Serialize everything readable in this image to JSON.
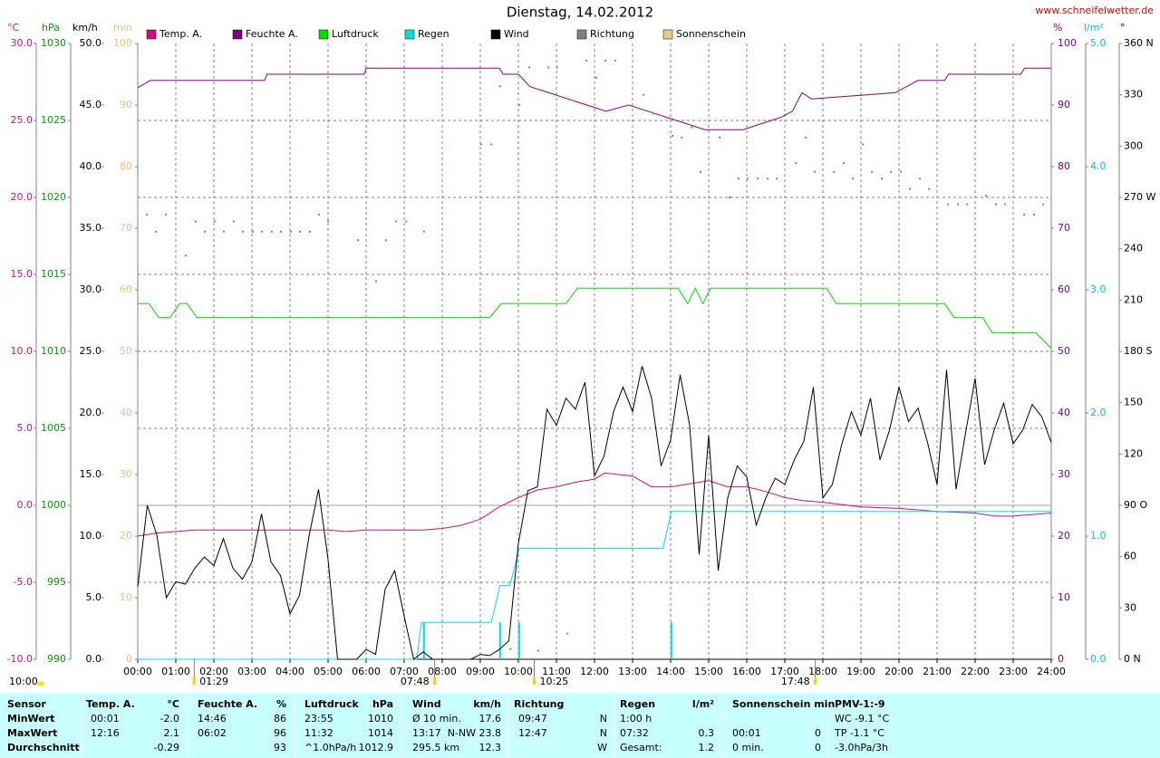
{
  "chart_data": {
    "type": "line",
    "title": "Dienstag, 14.02.2012",
    "source": "www.schneifelwetter.de",
    "grid": true,
    "xlim": [
      0,
      24
    ],
    "xticks": [
      {
        "value": 0,
        "label": "00:00"
      },
      {
        "value": 1,
        "label": "01:00"
      },
      {
        "value": 2,
        "label": "02:00"
      },
      {
        "value": 3,
        "label": "03:00"
      },
      {
        "value": 4,
        "label": "04:00"
      },
      {
        "value": 5,
        "label": "05:00"
      },
      {
        "value": 6,
        "label": "06:00"
      },
      {
        "value": 7,
        "label": "07:00"
      },
      {
        "value": 8,
        "label": "08:00"
      },
      {
        "value": 9,
        "label": "09:00"
      },
      {
        "value": 10,
        "label": "10:00"
      },
      {
        "value": 11,
        "label": "11:00"
      },
      {
        "value": 12,
        "label": "12:00"
      },
      {
        "value": 13,
        "label": "13:00"
      },
      {
        "value": 14,
        "label": "14:00"
      },
      {
        "value": 15,
        "label": "15:00"
      },
      {
        "value": 16,
        "label": "16:00"
      },
      {
        "value": 17,
        "label": "17:00"
      },
      {
        "value": 18,
        "label": "18:00"
      },
      {
        "value": 19,
        "label": "19:00"
      },
      {
        "value": 20,
        "label": "20:00"
      },
      {
        "value": 21,
        "label": "21:00"
      },
      {
        "value": 22,
        "label": "22:00"
      },
      {
        "value": 23,
        "label": "23:00"
      },
      {
        "value": 24,
        "label": "24:00"
      }
    ],
    "axes": {
      "temp": {
        "unit": "°C",
        "color": "#d0107a",
        "lim": [
          -10,
          30
        ],
        "ticks": [
          {
            "value": -10,
            "label": "-10.0"
          },
          {
            "value": -5,
            "label": "-5.0"
          },
          {
            "value": 0,
            "label": "0.0"
          },
          {
            "value": 5,
            "label": "5.0"
          },
          {
            "value": 10,
            "label": "10.0"
          },
          {
            "value": 15,
            "label": "15.0"
          },
          {
            "value": 20,
            "label": "20.0"
          },
          {
            "value": 25,
            "label": "25.0"
          },
          {
            "value": 30,
            "label": "30.0"
          }
        ]
      },
      "pressure": {
        "unit": "hPa",
        "color": "#00a000",
        "lim": [
          990,
          1030
        ],
        "ticks": [
          990,
          995,
          1000,
          1005,
          1010,
          1015,
          1020,
          1025,
          1030
        ]
      },
      "wind": {
        "unit": "km/h",
        "color": "#000000",
        "lim": [
          0,
          50
        ],
        "ticks": [
          {
            "value": 0,
            "label": "0.0"
          },
          {
            "value": 5,
            "label": "5.0"
          },
          {
            "value": 10,
            "label": "10.0"
          },
          {
            "value": 15,
            "label": "15.0"
          },
          {
            "value": 20,
            "label": "20.0"
          },
          {
            "value": 25,
            "label": "25.0"
          },
          {
            "value": 30,
            "label": "30.0"
          },
          {
            "value": 35,
            "label": "35.0"
          },
          {
            "value": 40,
            "label": "40.0"
          },
          {
            "value": 45,
            "label": "45.0"
          },
          {
            "value": 50,
            "label": "50.0"
          }
        ]
      },
      "sun": {
        "unit": "min",
        "color": "#f0c080",
        "lim": [
          0,
          100
        ],
        "ticks": [
          0,
          10,
          20,
          30,
          40,
          50,
          60,
          70,
          80,
          90,
          100
        ]
      },
      "humidity": {
        "unit": "%",
        "color": "#800080",
        "lim": [
          0,
          100
        ],
        "ticks": [
          0,
          10,
          20,
          30,
          40,
          50,
          60,
          70,
          80,
          90,
          100
        ]
      },
      "rain": {
        "unit": "l/m²",
        "color": "#00c8c8",
        "lim": [
          0,
          5
        ],
        "ticks": [
          {
            "value": 0,
            "label": "0.0"
          },
          {
            "value": 1,
            "label": "1.0"
          },
          {
            "value": 2,
            "label": "2.0"
          },
          {
            "value": 3,
            "label": "3.0"
          },
          {
            "value": 4,
            "label": "4.0"
          },
          {
            "value": 5,
            "label": "5.0"
          }
        ]
      },
      "direction": {
        "unit": "°",
        "color": "#000000",
        "lim": [
          0,
          360
        ],
        "ticks": [
          {
            "value": 0,
            "label": "0 N"
          },
          30,
          60,
          {
            "value": 90,
            "label": "90 O"
          },
          120,
          150,
          {
            "value": 180,
            "label": "180 S"
          },
          210,
          240,
          {
            "value": 270,
            "label": "270 W"
          },
          300,
          330,
          {
            "value": 360,
            "label": "360 N"
          }
        ]
      }
    },
    "series": [
      {
        "name": "Temp. A.",
        "color": "#d0107a",
        "axis": "temp",
        "style": "line",
        "x": [
          0,
          0.5,
          1,
          1.5,
          2,
          3,
          4,
          5,
          5.5,
          6,
          7,
          7.5,
          8,
          8.5,
          9,
          9.5,
          10,
          10.5,
          11,
          11.5,
          12,
          12.27,
          13,
          13.5,
          14,
          14.5,
          15,
          15.5,
          16,
          16.5,
          17,
          17.5,
          18,
          19,
          20,
          21,
          22,
          22.5,
          23,
          24
        ],
        "values": [
          -2.0,
          -1.8,
          -1.7,
          -1.6,
          -1.6,
          -1.6,
          -1.6,
          -1.6,
          -1.7,
          -1.6,
          -1.6,
          -1.6,
          -1.5,
          -1.3,
          -0.9,
          -0.1,
          0.5,
          1.0,
          1.2,
          1.5,
          1.7,
          2.1,
          1.9,
          1.2,
          1.2,
          1.4,
          1.6,
          1.2,
          1.2,
          0.9,
          0.5,
          0.3,
          0.2,
          -0.1,
          -0.2,
          -0.4,
          -0.5,
          -0.7,
          -0.7,
          -0.5
        ]
      },
      {
        "name": "Feuchte A.",
        "color": "#800080",
        "axis": "humidity",
        "style": "line",
        "x": [
          0,
          0.33,
          3.33,
          3.4,
          5.95,
          6.0,
          9.5,
          9.6,
          10.0,
          10.3,
          10.8,
          11.3,
          11.8,
          12.3,
          12.9,
          13.4,
          13.9,
          14.4,
          14.9,
          15.9,
          16.4,
          16.9,
          17.2,
          17.45,
          17.7,
          19.9,
          20.5,
          21.2,
          21.3,
          23.2,
          23.3,
          24
        ],
        "values": [
          92.8,
          94,
          94,
          95,
          95,
          96,
          96,
          95,
          95,
          93,
          92,
          91,
          90,
          89,
          90,
          89,
          88,
          87,
          86,
          86,
          87,
          88,
          89,
          92,
          91,
          92,
          94,
          94,
          95,
          95,
          96,
          96
        ]
      },
      {
        "name": "Luftdruck",
        "color": "#00dd00",
        "axis": "pressure",
        "style": "line",
        "x": [
          0,
          0.3,
          0.55,
          0.85,
          1.1,
          1.3,
          1.55,
          9.25,
          9.55,
          11.25,
          11.55,
          14.2,
          14.45,
          14.65,
          14.85,
          15.05,
          18.1,
          18.35,
          21.2,
          21.45,
          22.2,
          22.45,
          23.6,
          24
        ],
        "values": [
          1013.1,
          1013.1,
          1012.2,
          1012.2,
          1013.1,
          1013.1,
          1012.2,
          1012.2,
          1013.1,
          1013.1,
          1014.1,
          1014.1,
          1013.1,
          1014.1,
          1013.1,
          1014.1,
          1014.1,
          1013.1,
          1013.1,
          1012.2,
          1012.2,
          1011.2,
          1011.2,
          1010.2
        ]
      },
      {
        "name": "Regen",
        "color": "#00e0e0",
        "axis": "rain",
        "style": "line",
        "x": [
          0,
          7.33,
          7.45,
          9.29,
          9.52,
          9.78,
          10.02,
          13.8,
          14.02,
          24
        ],
        "values": [
          0,
          0,
          0.3,
          0.3,
          0.6,
          0.6,
          0.9,
          0.9,
          1.2,
          1.2
        ],
        "bars_x": [
          7.52,
          9.52,
          10.02,
          14.02
        ],
        "bars": [
          0.3,
          0.3,
          0.3,
          0.3
        ]
      },
      {
        "name": "Wind",
        "color": "#000000",
        "axis": "wind",
        "style": "line",
        "x": [
          0,
          0.25,
          0.5,
          0.75,
          1,
          1.25,
          1.5,
          1.75,
          2,
          2.25,
          2.5,
          2.75,
          3,
          3.25,
          3.5,
          3.75,
          4,
          4.25,
          4.5,
          4.75,
          5,
          5.25,
          5.5,
          5.75,
          6,
          6.25,
          6.5,
          6.75,
          7,
          7.25,
          7.5,
          7.75,
          8,
          8.25,
          8.5,
          8.75,
          9,
          9.25,
          9.5,
          9.75,
          10,
          10.25,
          10.5,
          10.75,
          11,
          11.25,
          11.5,
          11.75,
          12,
          12.25,
          12.5,
          12.75,
          13,
          13.25,
          13.5,
          13.75,
          14,
          14.25,
          14.5,
          14.75,
          15,
          15.25,
          15.5,
          15.75,
          16,
          16.25,
          16.5,
          16.75,
          17,
          17.25,
          17.5,
          17.75,
          18,
          18.25,
          18.5,
          18.75,
          19,
          19.25,
          19.5,
          19.75,
          20,
          20.25,
          20.5,
          20.75,
          21,
          21.25,
          21.5,
          21.75,
          22,
          22.25,
          22.5,
          22.75,
          23,
          23.25,
          23.5,
          23.75,
          24
        ],
        "values": [
          5.9,
          12.5,
          10.1,
          5.0,
          6.3,
          6.1,
          7.4,
          8.3,
          7.6,
          9.8,
          7.4,
          6.5,
          7.9,
          11.8,
          7.9,
          6.8,
          3.7,
          5.2,
          10.0,
          13.8,
          8.1,
          0,
          0,
          0,
          0.8,
          0.4,
          5.7,
          7.2,
          3.5,
          0,
          0.6,
          0,
          0,
          0,
          0,
          0,
          0.4,
          0.3,
          0.8,
          1.5,
          9.4,
          13.7,
          14.0,
          20.3,
          19.0,
          21.2,
          20.3,
          22.5,
          14.9,
          16.5,
          20.1,
          22.1,
          20.1,
          23.8,
          21.2,
          15.7,
          17.8,
          23.1,
          19.0,
          8.5,
          18.2,
          7.2,
          13.1,
          15.7,
          14.8,
          10.9,
          13.1,
          14.7,
          14.2,
          16.2,
          17.7,
          22.1,
          13.1,
          14.2,
          17.5,
          20.1,
          18.2,
          21.2,
          16.2,
          18.6,
          22.1,
          19.3,
          20.4,
          17.6,
          14.2,
          23.5,
          13.8,
          18.4,
          22.8,
          15.8,
          18.6,
          20.8,
          17.5,
          18.6,
          20.7,
          19.7,
          17.6
        ]
      },
      {
        "name": "Richtung",
        "color": "#808080",
        "axis": "direction",
        "style": "dots",
        "x": [
          0.24,
          0.48,
          0.74,
          1.26,
          1.52,
          1.76,
          2.02,
          2.26,
          2.52,
          2.76,
          3.02,
          3.26,
          3.52,
          3.76,
          4.02,
          4.26,
          4.52,
          4.76,
          5.0,
          5.79,
          6.26,
          6.52,
          6.79,
          7.05,
          7.52,
          9.02,
          9.29,
          9.52,
          9.79,
          10.02,
          10.29,
          10.52,
          10.79,
          11.02,
          11.29,
          11.79,
          12.05,
          12.29,
          12.55,
          13.29,
          13.55,
          14.05,
          14.29,
          14.55,
          14.79,
          15.29,
          15.55,
          15.79,
          16.02,
          16.29,
          16.55,
          16.79,
          17.29,
          17.55,
          17.79,
          18.29,
          18.55,
          18.79,
          19.05,
          19.29,
          19.55,
          19.79,
          20.05,
          20.29,
          20.55,
          20.79,
          21.29,
          21.55,
          21.79,
          22.29,
          22.55,
          22.79,
          23.29,
          23.55,
          23.79
        ],
        "values": [
          260,
          250,
          260,
          236,
          256,
          250,
          256,
          250,
          256,
          250,
          250,
          250,
          250,
          250,
          250,
          250,
          250,
          260,
          256,
          245,
          221,
          245,
          256,
          256,
          250,
          301,
          301,
          335,
          6,
          324,
          346,
          5,
          346,
          346,
          15,
          350,
          340,
          350,
          350,
          330,
          319,
          306,
          305,
          311,
          285,
          305,
          270,
          281,
          281,
          281,
          281,
          281,
          290,
          305,
          285,
          285,
          290,
          281,
          301,
          285,
          281,
          285,
          285,
          275,
          281,
          275,
          266,
          266,
          266,
          271,
          266,
          266,
          260,
          260,
          266
        ]
      },
      {
        "name": "Sonnenschein",
        "color": "#f0c890",
        "axis": "sun",
        "style": "line",
        "x": [],
        "values": []
      }
    ],
    "annotations": [
      {
        "label": "10:00"
      },
      {
        "label": "01:29",
        "x": 1.4833
      },
      {
        "label": "07:48",
        "x": 7.8
      },
      {
        "label": "10:25",
        "x": 10.4167
      },
      {
        "label": "17:48",
        "x": 17.8
      }
    ]
  },
  "table": {
    "rows": [
      [
        "Sensor",
        "Temp. A.",
        "°C",
        "Feuchte A.",
        "%",
        "Luftdruck",
        "hPa",
        "Wind",
        "km/h",
        "Richtung",
        null,
        "Regen",
        "l/m²",
        "Sonnenschein min",
        null,
        "PMV-1:-9"
      ],
      [
        "MinWert",
        "00:01",
        "-2.0",
        "14:46",
        "86",
        "23:55",
        "1010",
        "Ø 10 min.",
        "17.6",
        "09:47",
        "N",
        "1:00 h",
        null,
        null,
        null,
        "WC -9.1 °C"
      ],
      [
        "MaxWert",
        "12:16",
        "2.1",
        "06:02",
        "96",
        "11:32",
        "1014",
        "13:17",
        "N-NW 23.8",
        "12:47",
        "N",
        "07:32",
        "0.3",
        "00:01",
        "0",
        "TP -1.1 °C"
      ],
      [
        "Durchschnitt",
        null,
        "-0.29",
        null,
        "93",
        "^1.0hPa/h",
        "1012.9",
        "295.5 km",
        "12.3",
        null,
        "W",
        "Gesamt:",
        "1.2",
        "0 min.",
        "0",
        "-3.0hPa/3h"
      ]
    ]
  }
}
